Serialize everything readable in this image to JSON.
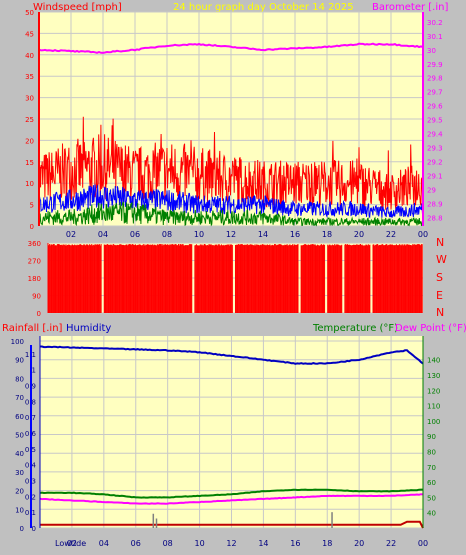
{
  "header": {
    "title": "24 hour graph day   October 14 2025",
    "left_label": "Windspeed [mph]",
    "right_label": "Barometer [.in]"
  },
  "colors": {
    "background": "#c0c0c0",
    "plot_bg": "#ffffc0",
    "grid": "#c8c8c8",
    "title": "#ffff00",
    "wind_axis": "#ff0000",
    "baro_axis": "#ff00ff",
    "wind_max": "#ff0000",
    "wind_avg": "#0000ff",
    "wind_min": "#008000",
    "barometer": "#ff00ff",
    "direction": "#ff0000",
    "rain": "#0000ff",
    "humidity": "#0000c0",
    "temperature": "#008000",
    "dewpoint": "#ff00ff",
    "rain_total": "#c00000"
  },
  "chart_data": [
    {
      "type": "line",
      "xlabel": "",
      "x_ticks": [
        "02",
        "04",
        "06",
        "08",
        "10",
        "12",
        "14",
        "16",
        "18",
        "20",
        "22",
        "00"
      ],
      "y_left": {
        "label": "Windspeed [mph]",
        "ticks": [
          0,
          5,
          10,
          15,
          20,
          25,
          30,
          35,
          40,
          45,
          50
        ],
        "ylim": [
          0,
          50
        ]
      },
      "y_right": {
        "label": "Barometer [.in]",
        "ticks": [
          "28.8",
          "28.9",
          "29",
          "29.1",
          "29.2",
          "29.3",
          "29.4",
          "29.5",
          "29.6",
          "29.7",
          "29.8",
          "29.9",
          "30",
          "30.1",
          "30.2"
        ],
        "ylim": [
          28.74,
          30.27
        ]
      },
      "grid": true,
      "series": [
        {
          "name": "",
          "axis": "right",
          "hours": [
            0,
            2,
            4,
            6,
            8,
            10,
            12,
            14,
            16,
            18,
            20,
            22,
            24
          ],
          "values": [
            30.0,
            29.99,
            29.98,
            30.0,
            30.03,
            30.04,
            30.02,
            30.0,
            30.01,
            30.02,
            30.04,
            30.04,
            30.02
          ]
        },
        {
          "name": "",
          "axis": "left",
          "kind": "gust",
          "hours": [
            0,
            2,
            4,
            6,
            8,
            10,
            12,
            14,
            16,
            18,
            20,
            22,
            24
          ],
          "values": [
            11,
            13,
            14,
            12,
            13,
            12,
            11,
            10,
            10,
            10,
            10,
            8,
            10
          ]
        },
        {
          "name": "",
          "axis": "left",
          "kind": "average",
          "hours": [
            0,
            2,
            4,
            6,
            8,
            10,
            12,
            14,
            16,
            18,
            20,
            22,
            24
          ],
          "values": [
            5,
            6,
            7,
            6,
            6,
            5,
            5,
            5,
            4,
            4,
            4,
            3,
            4
          ]
        },
        {
          "name": "",
          "axis": "left",
          "kind": "lull",
          "hours": [
            0,
            2,
            4,
            6,
            8,
            10,
            12,
            14,
            16,
            18,
            20,
            22,
            24
          ],
          "values": [
            2,
            2,
            3,
            3,
            2,
            2,
            2,
            2,
            1,
            1,
            1,
            1,
            1
          ]
        }
      ]
    },
    {
      "type": "bar",
      "title": "",
      "x_ticks": [
        "02",
        "04",
        "06",
        "08",
        "10",
        "12",
        "14",
        "16",
        "18",
        "20",
        "22",
        "00"
      ],
      "y_left_ticks": [
        0,
        90,
        180,
        270,
        360
      ],
      "ylim": [
        0,
        360
      ],
      "right_labels": [
        "N",
        "W",
        "S",
        "E",
        "N"
      ],
      "series": [
        {
          "name": "",
          "hours": [
            0,
            4,
            8,
            12,
            16,
            20,
            24
          ],
          "values": [
            355,
            355,
            355,
            355,
            355,
            355,
            355
          ]
        }
      ]
    },
    {
      "type": "line",
      "x_ticks": [
        "02",
        "04",
        "06",
        "08",
        "10",
        "12",
        "14",
        "16",
        "18",
        "20",
        "22",
        "00"
      ],
      "bottom_left_label": "Lowtide",
      "legend": {
        "rainfall": "Rainfall [.in]",
        "humidity": "Humidity",
        "temperature": "Temperature (°F)",
        "dewpoint": "Dew Point (°F)"
      },
      "y_left_humidity": {
        "ticks": [
          0,
          10,
          20,
          30,
          40,
          50,
          60,
          70,
          80,
          90,
          100
        ],
        "ylim": [
          0,
          100
        ]
      },
      "y_left_rain": {
        "ticks": [
          "0",
          "0.1",
          "0.2",
          "0.3",
          "0.4",
          "0.5",
          "0.6",
          "0.7",
          "0.8",
          "0.9",
          "1",
          "1.1"
        ],
        "ylim": [
          0,
          1.2
        ]
      },
      "y_right_temp": {
        "ticks": [
          40,
          50,
          60,
          70,
          80,
          90,
          100,
          110,
          120,
          130,
          140
        ],
        "ylim": [
          30,
          145
        ]
      },
      "grid": true,
      "series": [
        {
          "name": "Humidity",
          "axis": "humidity",
          "hours": [
            0,
            2,
            4,
            6,
            8,
            10,
            12,
            14,
            16,
            18,
            20,
            21,
            22,
            23,
            24
          ],
          "values": [
            97,
            96.5,
            96,
            95.5,
            95,
            94,
            92,
            90,
            88,
            88,
            90,
            92,
            94,
            95,
            88
          ]
        },
        {
          "name": "Temperature (°F)",
          "axis": "temp",
          "hours": [
            0,
            2,
            4,
            6,
            8,
            10,
            12,
            14,
            16,
            18,
            20,
            22,
            24
          ],
          "values": [
            53,
            53,
            52,
            50,
            50,
            51,
            52,
            54,
            55,
            55,
            54,
            54,
            55
          ]
        },
        {
          "name": "Dew Point (°F)",
          "axis": "temp",
          "hours": [
            0,
            2,
            4,
            6,
            8,
            10,
            12,
            14,
            16,
            18,
            20,
            22,
            24
          ],
          "values": [
            49,
            48,
            47,
            46,
            46,
            47,
            48,
            49,
            50,
            51,
            51,
            51,
            52
          ]
        },
        {
          "name": "Rainfall [.in]",
          "axis": "rain",
          "kind": "total",
          "hours": [
            0,
            8,
            16,
            22.6,
            23,
            23.8,
            24
          ],
          "values": [
            0.02,
            0.02,
            0.02,
            0.02,
            0.04,
            0.04,
            0.0
          ]
        },
        {
          "name": "",
          "axis": "rain",
          "kind": "rate",
          "hours": [
            7.1,
            7.3,
            18.3
          ],
          "values": [
            0.09,
            0.06,
            0.1
          ]
        }
      ]
    }
  ]
}
